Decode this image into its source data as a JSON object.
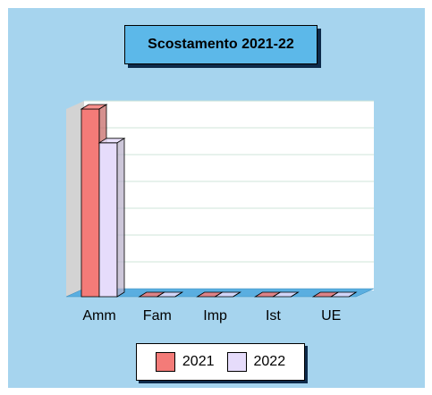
{
  "chart_data": {
    "type": "bar",
    "title": "Scostamento 2021-22",
    "categories": [
      "Amm",
      "Fam",
      "Imp",
      "Ist",
      "UE"
    ],
    "series": [
      {
        "name": "2021",
        "values": [
          100,
          0,
          0,
          0,
          0
        ],
        "color": "#f47b78"
      },
      {
        "name": "2022",
        "values": [
          82,
          0,
          0,
          0,
          0
        ],
        "color": "#e6dcfb"
      }
    ],
    "ylim": [
      0,
      100
    ],
    "grid": true,
    "legend": "bottom",
    "three_d": true,
    "background": "#a6d4ee"
  }
}
